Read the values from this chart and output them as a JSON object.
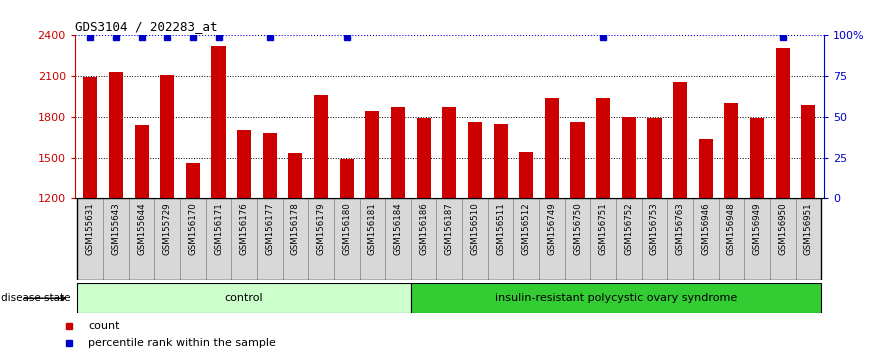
{
  "title": "GDS3104 / 202283_at",
  "samples": [
    "GSM155631",
    "GSM155643",
    "GSM155644",
    "GSM155729",
    "GSM156170",
    "GSM156171",
    "GSM156176",
    "GSM156177",
    "GSM156178",
    "GSM156179",
    "GSM156180",
    "GSM156181",
    "GSM156184",
    "GSM156186",
    "GSM156187",
    "GSM156510",
    "GSM156511",
    "GSM156512",
    "GSM156749",
    "GSM156750",
    "GSM156751",
    "GSM156752",
    "GSM156753",
    "GSM156763",
    "GSM156946",
    "GSM156948",
    "GSM156949",
    "GSM156950",
    "GSM156951"
  ],
  "values": [
    2090,
    2130,
    1740,
    2110,
    1460,
    2320,
    1700,
    1680,
    1530,
    1960,
    1490,
    1840,
    1870,
    1790,
    1870,
    1760,
    1750,
    1540,
    1940,
    1760,
    1940,
    1800,
    1790,
    2060,
    1640,
    1900,
    1790,
    2310,
    1890
  ],
  "percentile_high": [
    1,
    1,
    1,
    1,
    1,
    1,
    0,
    1,
    0,
    0,
    1,
    0,
    0,
    0,
    0,
    0,
    0,
    0,
    0,
    0,
    1,
    0,
    0,
    0,
    0,
    0,
    0,
    1,
    0
  ],
  "control_count": 13,
  "ymin": 1200,
  "ymax": 2400,
  "yticks_left": [
    1200,
    1500,
    1800,
    2100,
    2400
  ],
  "yticks_right": [
    0,
    25,
    50,
    75,
    100
  ],
  "bar_color": "#cc0000",
  "pct_color": "#0000cc",
  "grid_color": "#000000",
  "tick_bg": "#d8d8d8",
  "tick_border": "#888888",
  "control_label": "control",
  "disease_label": "insulin-resistant polycystic ovary syndrome",
  "control_bg": "#ccffcc",
  "disease_bg": "#33cc33",
  "disease_state_label": "disease state",
  "legend_bar_label": "count",
  "legend_pct_label": "percentile rank within the sample",
  "figwidth": 8.81,
  "figheight": 3.54
}
